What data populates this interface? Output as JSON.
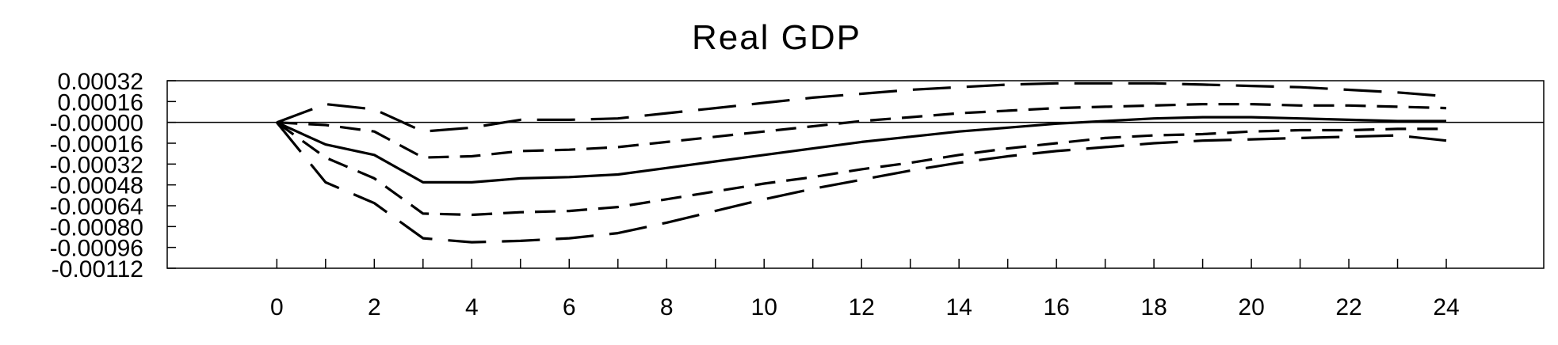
{
  "chart_data": {
    "type": "line",
    "title": "Real GDP",
    "xlabel": "",
    "ylabel": "",
    "x": [
      0,
      1,
      2,
      3,
      4,
      5,
      6,
      7,
      8,
      9,
      10,
      11,
      12,
      13,
      14,
      15,
      16,
      17,
      18,
      19,
      20,
      21,
      22,
      23,
      24
    ],
    "x_ticks": [
      0,
      2,
      4,
      6,
      8,
      10,
      12,
      14,
      16,
      18,
      20,
      22,
      24
    ],
    "x_tick_labels": [
      "0",
      "2",
      "4",
      "6",
      "8",
      "10",
      "12",
      "14",
      "16",
      "18",
      "20",
      "22",
      "24"
    ],
    "xlim": [
      -2.25,
      26
    ],
    "ylim": [
      -0.00112,
      0.00032
    ],
    "y_ticks": [
      0.00032,
      0.00016,
      0,
      -0.00016,
      -0.00032,
      -0.00048,
      -0.00064,
      -0.0008,
      -0.00096,
      -0.00112
    ],
    "y_tick_labels": [
      "0.00032",
      "0.00016",
      "-0.00000",
      "-0.00016",
      "-0.00032",
      "-0.00048",
      "-0.00064",
      "-0.00080",
      "-0.00096",
      "-0.00112"
    ],
    "zero_line": true,
    "grid": false,
    "series": [
      {
        "style": "solid",
        "values": [
          0,
          -0.00017,
          -0.00025,
          -0.00046,
          -0.00046,
          -0.00043,
          -0.00042,
          -0.0004,
          -0.00035,
          -0.0003,
          -0.00025,
          -0.0002,
          -0.00015,
          -0.00011,
          -7e-05,
          -4e-05,
          -1e-05,
          1e-05,
          3e-05,
          4e-05,
          4e-05,
          3e-05,
          2e-05,
          1e-05,
          1e-05
        ]
      },
      {
        "style": "short-dash",
        "values": [
          0,
          -2e-05,
          -7e-05,
          -0.00027,
          -0.00026,
          -0.00022,
          -0.00021,
          -0.00019,
          -0.00015,
          -0.00011,
          -7e-05,
          -3e-05,
          1e-05,
          4e-05,
          7e-05,
          9e-05,
          0.00011,
          0.00012,
          0.00013,
          0.00014,
          0.00014,
          0.00013,
          0.00013,
          0.00012,
          0.00011
        ]
      },
      {
        "style": "short-dash",
        "values": [
          0,
          -0.00027,
          -0.00043,
          -0.0007,
          -0.00071,
          -0.00069,
          -0.00068,
          -0.00065,
          -0.00059,
          -0.00053,
          -0.00047,
          -0.00042,
          -0.00036,
          -0.00031,
          -0.00025,
          -0.0002,
          -0.00016,
          -0.00012,
          -0.0001,
          -9e-05,
          -7e-05,
          -6e-05,
          -6e-05,
          -5e-05,
          -5e-05
        ]
      },
      {
        "style": "long-dash",
        "values": [
          0,
          0.00014,
          0.0001,
          -7e-05,
          -4e-05,
          2e-05,
          2e-05,
          3e-05,
          7e-05,
          0.00011,
          0.00015,
          0.00019,
          0.00022,
          0.00025,
          0.00027,
          0.00029,
          0.0003,
          0.0003,
          0.0003,
          0.00029,
          0.00028,
          0.00027,
          0.00025,
          0.00023,
          0.0002
        ]
      },
      {
        "style": "long-dash",
        "values": [
          0,
          -0.00046,
          -0.00062,
          -0.00089,
          -0.00092,
          -0.00091,
          -0.00089,
          -0.00085,
          -0.00077,
          -0.00068,
          -0.00059,
          -0.00051,
          -0.00044,
          -0.00037,
          -0.00031,
          -0.00026,
          -0.00022,
          -0.00019,
          -0.00016,
          -0.00014,
          -0.00013,
          -0.00012,
          -0.00011,
          -0.0001,
          -0.00014
        ]
      }
    ]
  }
}
